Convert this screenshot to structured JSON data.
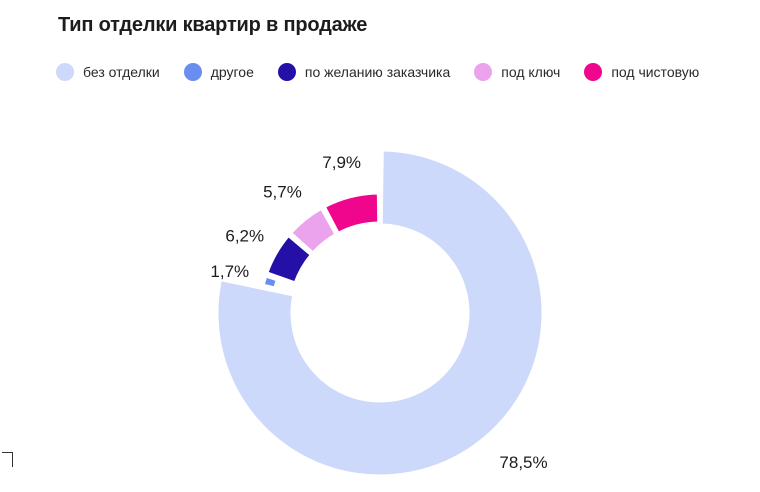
{
  "chart_data": {
    "type": "pie",
    "title": "Тип отделки квартир в продаже",
    "legend_position": "top-left",
    "slices": [
      {
        "name": "без отделки",
        "value": 78.5,
        "label": "78,5%",
        "color": "#cdd9fa"
      },
      {
        "name": "другое",
        "value": 1.7,
        "label": "1,7%",
        "color": "#6a8ef0"
      },
      {
        "name": "по желанию заказчика",
        "value": 6.2,
        "label": "6,2%",
        "color": "#2410a6"
      },
      {
        "name": "под ключ",
        "value": 5.7,
        "label": "5,7%",
        "color": "#eca3ee"
      },
      {
        "name": "под чистовую",
        "value": 7.9,
        "label": "7,9%",
        "color": "#f0068c"
      }
    ]
  }
}
